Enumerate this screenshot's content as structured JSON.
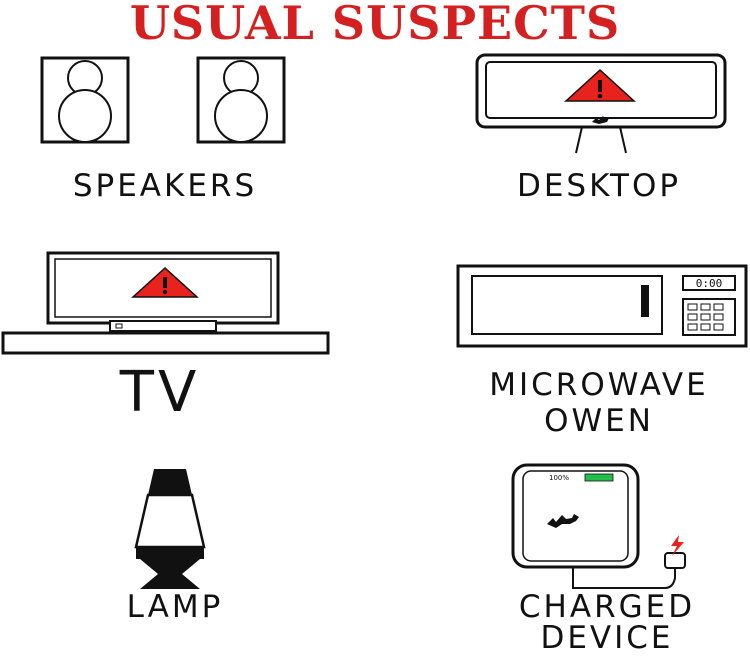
{
  "title": "USUAL SUSPECTS",
  "title_color": "#d42020",
  "accent_warning": "#e8231d",
  "battery_color": "#22c04a",
  "items": [
    {
      "label": "SPEAKERS",
      "icon": "speakers-icon"
    },
    {
      "label": "DESKTOP",
      "icon": "desktop-monitor-icon"
    },
    {
      "label": "TV",
      "icon": "tv-icon"
    },
    {
      "label": "MICROWAVE",
      "label2": "OWEN",
      "icon": "microwave-icon",
      "display": "0:00"
    },
    {
      "label": "LAMP",
      "icon": "lava-lamp-icon"
    },
    {
      "label": "CHARGED",
      "label2": "DEVICE",
      "icon": "charging-phone-icon",
      "battery": "100%"
    }
  ]
}
